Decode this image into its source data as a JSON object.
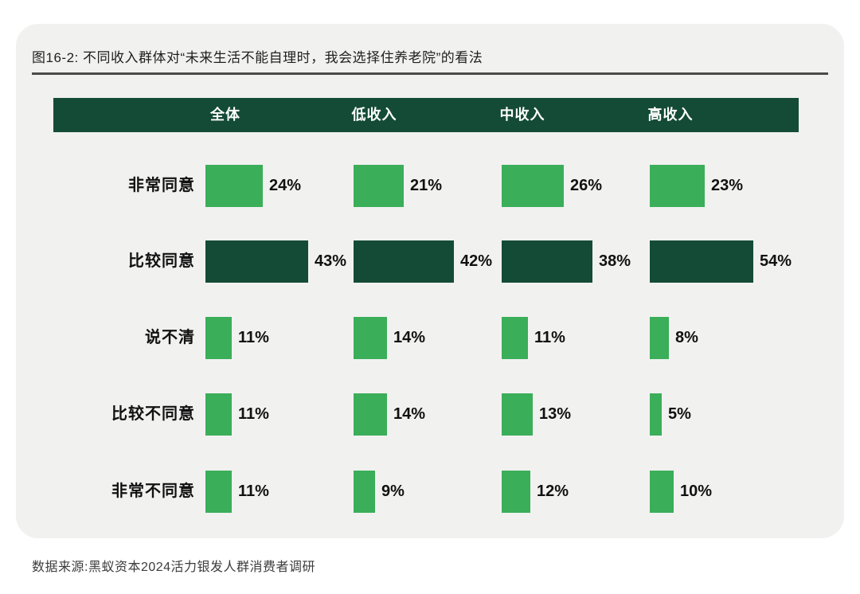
{
  "title": "图16-2: 不同收入群体对“未来生活不能自理时，我会选择住养老院”的看法",
  "source": "数据来源:黑蚁资本2024活力银发人群消费者调研",
  "colors": {
    "page_bg": "#ffffff",
    "card_bg": "#f1f1f0",
    "header_bg": "#144b37",
    "bar_light_green": "#3bae5a",
    "bar_dark_green": "#144b37",
    "divider": "#4a4a4a",
    "text": "#111111"
  },
  "chart_data": {
    "type": "bar",
    "orientation": "horizontal",
    "unit": "%",
    "title": "图16-2: 不同收入群体对“未来生活不能自理时，我会选择住养老院”的看法",
    "columns": [
      "全体",
      "低收入",
      "中收入",
      "高收入"
    ],
    "categories": [
      "非常同意",
      "比较同意",
      "说不清",
      "比较不同意",
      "非常不同意"
    ],
    "series": [
      {
        "name": "全体",
        "values": [
          24,
          43,
          11,
          11,
          11
        ]
      },
      {
        "name": "低收入",
        "values": [
          21,
          42,
          14,
          14,
          9
        ]
      },
      {
        "name": "中收入",
        "values": [
          26,
          38,
          11,
          13,
          12
        ]
      },
      {
        "name": "高收入",
        "values": [
          23,
          54,
          8,
          5,
          10
        ]
      }
    ],
    "value_labels": [
      [
        "24%",
        "43%",
        "11%",
        "11%",
        "11%"
      ],
      [
        "21%",
        "42%",
        "14%",
        "14%",
        "9%"
      ],
      [
        "26%",
        "38%",
        "11%",
        "13%",
        "12%"
      ],
      [
        "23%",
        "54%",
        "8%",
        "5%",
        "10%"
      ]
    ],
    "highlight_category": "比较同意",
    "legend": "none",
    "grid": false
  }
}
